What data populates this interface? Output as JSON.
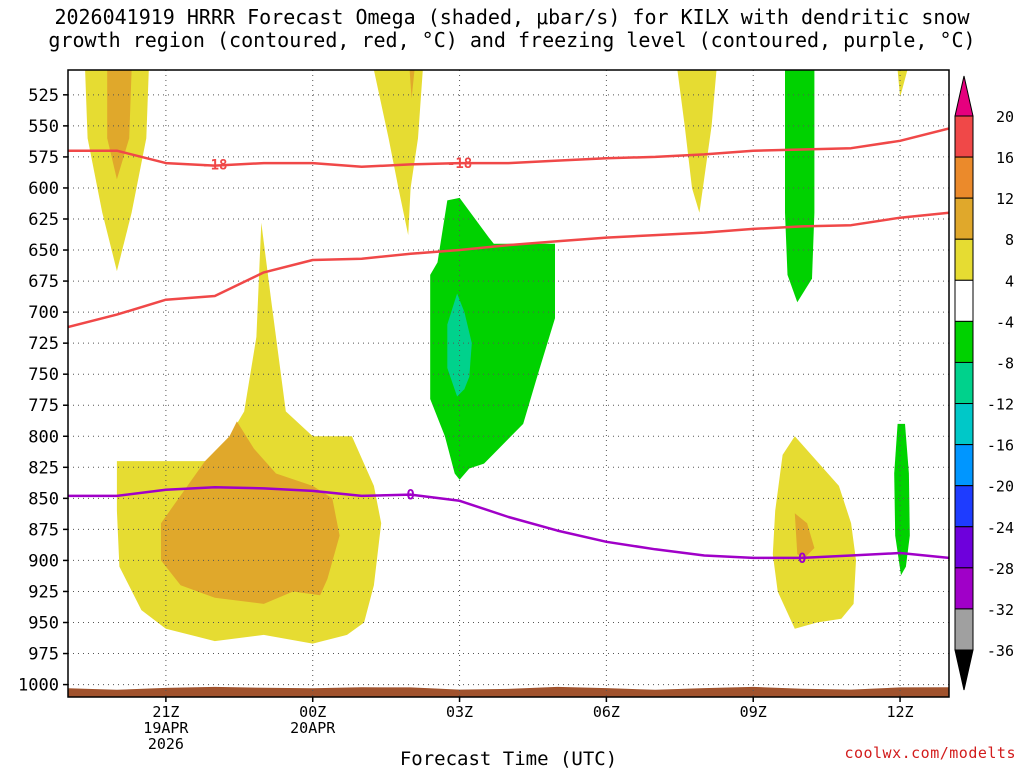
{
  "title": {
    "line1": "2026041919 HRRR Forecast Omega (shaded, μbar/s) for KILX with dendritic snow",
    "line2": "growth region (contoured, red, °C) and freezing level (contoured, purple, °C)"
  },
  "attribution": "coolwx.com/modelts",
  "chart_data": {
    "type": "heatmap",
    "title": "2026041919 HRRR Forecast Omega (shaded, μbar/s) for KILX with dendritic snow growth region (contoured, red, °C) and freezing level (contoured, purple, °C)",
    "xlabel": "Forecast Time (UTC)",
    "ylabel": "",
    "x_unit": "forecast hour from 2026-04-19 19Z",
    "xlim": [
      0,
      18
    ],
    "ylim": [
      1010,
      505
    ],
    "y_ticks": [
      525,
      550,
      575,
      600,
      625,
      650,
      675,
      700,
      725,
      750,
      775,
      800,
      825,
      850,
      875,
      900,
      925,
      950,
      975,
      1000
    ],
    "x_ticks": [
      {
        "hour": 2,
        "lines": [
          "21Z",
          "19APR",
          "2026"
        ]
      },
      {
        "hour": 5,
        "lines": [
          "00Z",
          "20APR"
        ]
      },
      {
        "hour": 8,
        "lines": [
          "03Z"
        ]
      },
      {
        "hour": 11,
        "lines": [
          "06Z"
        ]
      },
      {
        "hour": 14,
        "lines": [
          "09Z"
        ]
      },
      {
        "hour": 17,
        "lines": [
          "12Z"
        ]
      }
    ],
    "colorbar": {
      "levels": [
        20,
        16,
        12,
        8,
        4,
        -4,
        -8,
        -12,
        -16,
        -20,
        -24,
        -28,
        -32,
        -36
      ],
      "bands": [
        {
          "from": 16,
          "to": 20,
          "color": "#f04848"
        },
        {
          "from": 12,
          "to": 16,
          "color": "#eb8a2b"
        },
        {
          "from": 8,
          "to": 12,
          "color": "#e0a82b"
        },
        {
          "from": 4,
          "to": 8,
          "color": "#e6dc32"
        },
        {
          "from": -4,
          "to": 4,
          "color": "#ffffff"
        },
        {
          "from": -8,
          "to": -4,
          "color": "#00d200"
        },
        {
          "from": -12,
          "to": -8,
          "color": "#00d28c"
        },
        {
          "from": -16,
          "to": -12,
          "color": "#00c8c8"
        },
        {
          "from": -20,
          "to": -16,
          "color": "#0096ff"
        },
        {
          "from": -24,
          "to": -20,
          "color": "#1e3cff"
        },
        {
          "from": -28,
          "to": -24,
          "color": "#6e00dc"
        },
        {
          "from": -32,
          "to": -28,
          "color": "#a000c8"
        },
        {
          "from": -36,
          "to": -32,
          "color": "#a0a0a0"
        }
      ],
      "overflow_high_color": "#e6007e",
      "overflow_low_color": "#000000"
    },
    "omega_regions": [
      {
        "name": "yellow-left-top",
        "level": 4,
        "color": "#e6dc32",
        "points": [
          [
            0.35,
            505
          ],
          [
            1.65,
            505
          ],
          [
            1.6,
            560
          ],
          [
            1.3,
            620
          ],
          [
            1.0,
            667
          ],
          [
            0.7,
            620
          ],
          [
            0.4,
            560
          ]
        ]
      },
      {
        "name": "orange-left-top",
        "level": 8,
        "color": "#e0a82b",
        "points": [
          [
            0.8,
            505
          ],
          [
            1.3,
            505
          ],
          [
            1.25,
            560
          ],
          [
            1.0,
            593
          ],
          [
            0.8,
            560
          ]
        ]
      },
      {
        "name": "yellow-spike-0230",
        "level": 4,
        "color": "#e6dc32",
        "points": [
          [
            6.25,
            505
          ],
          [
            7.25,
            505
          ],
          [
            7.15,
            560
          ],
          [
            7.0,
            600
          ],
          [
            6.95,
            638
          ],
          [
            6.75,
            600
          ],
          [
            6.55,
            560
          ]
        ]
      },
      {
        "name": "orange-spike-0230",
        "level": 8,
        "color": "#e0a82b",
        "points": [
          [
            6.98,
            505
          ],
          [
            7.08,
            505
          ],
          [
            7.02,
            528
          ]
        ]
      },
      {
        "name": "yellow-spike-0730",
        "level": 4,
        "color": "#e6dc32",
        "points": [
          [
            12.45,
            505
          ],
          [
            13.25,
            505
          ],
          [
            13.15,
            550
          ],
          [
            12.9,
            620
          ],
          [
            12.75,
            600
          ],
          [
            12.6,
            550
          ]
        ]
      },
      {
        "name": "yellow-spike-1130",
        "level": 4,
        "color": "#e6dc32",
        "points": [
          [
            16.95,
            505
          ],
          [
            17.15,
            505
          ],
          [
            17.0,
            527
          ]
        ]
      },
      {
        "name": "green-column-1000",
        "level": -4,
        "color": "#00d200",
        "points": [
          [
            14.65,
            505
          ],
          [
            15.25,
            505
          ],
          [
            15.25,
            620
          ],
          [
            15.2,
            673
          ],
          [
            14.9,
            692
          ],
          [
            14.7,
            670
          ],
          [
            14.65,
            620
          ]
        ]
      },
      {
        "name": "yellow-main-low",
        "level": 4,
        "color": "#e6dc32",
        "points": [
          [
            1.0,
            820
          ],
          [
            3.0,
            820
          ],
          [
            3.6,
            780
          ],
          [
            3.85,
            720
          ],
          [
            3.95,
            628
          ],
          [
            4.15,
            690
          ],
          [
            4.45,
            780
          ],
          [
            5.0,
            800
          ],
          [
            5.8,
            800
          ],
          [
            6.25,
            840
          ],
          [
            6.4,
            870
          ],
          [
            6.25,
            920
          ],
          [
            6.05,
            950
          ],
          [
            5.7,
            960
          ],
          [
            5.0,
            967
          ],
          [
            4.0,
            960
          ],
          [
            3.0,
            965
          ],
          [
            2.0,
            955
          ],
          [
            1.5,
            940
          ],
          [
            1.05,
            905
          ],
          [
            1.0,
            860
          ]
        ]
      },
      {
        "name": "orange-main-low",
        "level": 8,
        "color": "#e0a82b",
        "points": [
          [
            1.9,
            870
          ],
          [
            2.8,
            820
          ],
          [
            3.3,
            800
          ],
          [
            3.45,
            788
          ],
          [
            3.8,
            810
          ],
          [
            4.25,
            830
          ],
          [
            5.0,
            840
          ],
          [
            5.4,
            850
          ],
          [
            5.55,
            880
          ],
          [
            5.3,
            915
          ],
          [
            5.15,
            928
          ],
          [
            4.6,
            925
          ],
          [
            4.0,
            935
          ],
          [
            3.0,
            930
          ],
          [
            2.3,
            920
          ],
          [
            1.9,
            900
          ]
        ]
      },
      {
        "name": "green-blob-0300",
        "level": -4,
        "color": "#00d200",
        "points": [
          [
            7.4,
            725
          ],
          [
            7.4,
            670
          ],
          [
            7.55,
            660
          ],
          [
            7.75,
            610
          ],
          [
            8.0,
            608
          ],
          [
            8.6,
            640
          ],
          [
            8.7,
            645
          ],
          [
            9.95,
            645
          ],
          [
            9.95,
            705
          ],
          [
            9.6,
            750
          ],
          [
            9.3,
            790
          ],
          [
            8.8,
            810
          ],
          [
            8.5,
            822
          ],
          [
            8.2,
            826
          ],
          [
            8.0,
            835
          ],
          [
            7.9,
            830
          ],
          [
            7.7,
            800
          ],
          [
            7.4,
            770
          ]
        ]
      },
      {
        "name": "teal-core-0300",
        "level": -8,
        "color": "#00d28c",
        "points": [
          [
            7.75,
            710
          ],
          [
            7.95,
            685
          ],
          [
            8.1,
            700
          ],
          [
            8.25,
            725
          ],
          [
            8.2,
            752
          ],
          [
            8.1,
            762
          ],
          [
            7.95,
            768
          ],
          [
            7.75,
            745
          ]
        ]
      },
      {
        "name": "yellow-blob-1000",
        "level": 4,
        "color": "#e6dc32",
        "points": [
          [
            14.45,
            860
          ],
          [
            14.6,
            815
          ],
          [
            14.85,
            800
          ],
          [
            15.3,
            820
          ],
          [
            15.75,
            840
          ],
          [
            16.0,
            870
          ],
          [
            16.1,
            900
          ],
          [
            16.05,
            935
          ],
          [
            15.8,
            947
          ],
          [
            15.3,
            950
          ],
          [
            14.85,
            955
          ],
          [
            14.5,
            925
          ],
          [
            14.4,
            895
          ]
        ]
      },
      {
        "name": "orange-dot-1000",
        "level": 8,
        "color": "#e0a82b",
        "points": [
          [
            14.85,
            862
          ],
          [
            15.1,
            870
          ],
          [
            15.25,
            890
          ],
          [
            15.05,
            898
          ],
          [
            14.9,
            895
          ]
        ]
      },
      {
        "name": "green-thin-1200",
        "level": -4,
        "color": "#00d200",
        "points": [
          [
            16.95,
            790
          ],
          [
            17.1,
            790
          ],
          [
            17.18,
            830
          ],
          [
            17.2,
            880
          ],
          [
            17.12,
            905
          ],
          [
            17.02,
            912
          ],
          [
            16.9,
            880
          ],
          [
            16.88,
            830
          ]
        ]
      }
    ],
    "contours": [
      {
        "name": "dgz-minus18-upper",
        "value": -18,
        "color": "#f04848",
        "points": [
          [
            0,
            570
          ],
          [
            1,
            570
          ],
          [
            2,
            580
          ],
          [
            3,
            582
          ],
          [
            4,
            580
          ],
          [
            5,
            580
          ],
          [
            6,
            583
          ],
          [
            7,
            581
          ],
          [
            8,
            580
          ],
          [
            9,
            580
          ],
          [
            10,
            578
          ],
          [
            11,
            576
          ],
          [
            12,
            575
          ],
          [
            13,
            573
          ],
          [
            14,
            570
          ],
          [
            15,
            569
          ],
          [
            16,
            568
          ],
          [
            17,
            562
          ],
          [
            18,
            552
          ]
        ],
        "labels": [
          [
            3.0,
            581
          ],
          [
            8.0,
            580
          ]
        ]
      },
      {
        "name": "dgz-lower",
        "value": -12,
        "color": "#f04848",
        "points": [
          [
            0,
            712
          ],
          [
            1,
            702
          ],
          [
            2,
            690
          ],
          [
            3,
            687
          ],
          [
            4,
            668
          ],
          [
            5,
            658
          ],
          [
            6,
            657
          ],
          [
            7,
            653
          ],
          [
            8,
            650
          ],
          [
            9,
            646
          ],
          [
            10,
            643
          ],
          [
            11,
            640
          ],
          [
            12,
            638
          ],
          [
            13,
            636
          ],
          [
            14,
            633
          ],
          [
            15,
            631
          ],
          [
            16,
            630
          ],
          [
            17,
            624
          ],
          [
            18,
            620
          ]
        ],
        "labels": []
      },
      {
        "name": "freezing-level",
        "value": 0,
        "color": "#a000c8",
        "points": [
          [
            0,
            848
          ],
          [
            1,
            848
          ],
          [
            2,
            843
          ],
          [
            3,
            841
          ],
          [
            4,
            842
          ],
          [
            5,
            844
          ],
          [
            6,
            848
          ],
          [
            7,
            847
          ],
          [
            8,
            852
          ],
          [
            9,
            865
          ],
          [
            10,
            876
          ],
          [
            11,
            885
          ],
          [
            12,
            891
          ],
          [
            13,
            896
          ],
          [
            14,
            898
          ],
          [
            15,
            898
          ],
          [
            16,
            896
          ],
          [
            17,
            894
          ],
          [
            18,
            898
          ]
        ],
        "labels": [
          [
            7.0,
            847
          ],
          [
            15.0,
            898
          ]
        ]
      }
    ],
    "terrain_color": "#a0522d"
  }
}
